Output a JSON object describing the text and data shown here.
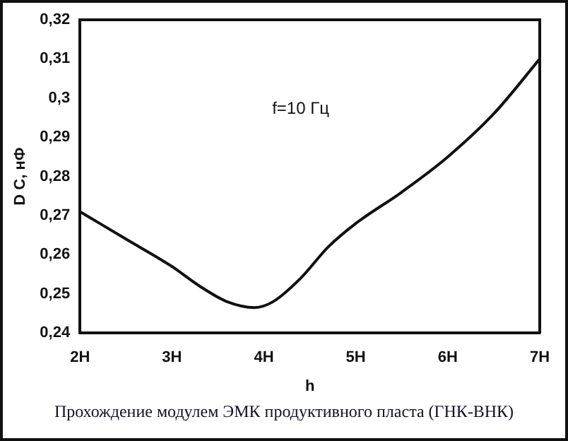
{
  "chart_data": {
    "type": "line",
    "xlabel": "h",
    "ylabel": "D C, нФ",
    "annotations": [
      "f=10 Гц",
      "Прохождение модулем ЭМК продуктивного пласта (ГНК-ВНК)"
    ],
    "series": [
      {
        "color": "#111111",
        "x": [
          2,
          2.5,
          3,
          3.3,
          3.6,
          3.9,
          4.1,
          4.4,
          4.7,
          5,
          5.5,
          6,
          6.5,
          7
        ],
        "values": [
          0.271,
          0.264,
          0.257,
          0.252,
          0.248,
          0.2465,
          0.248,
          0.254,
          0.262,
          0.268,
          0.276,
          0.285,
          0.296,
          0.31
        ]
      }
    ],
    "xlim": [
      2,
      7
    ],
    "xticks": [
      {
        "value": 2,
        "label": "2H"
      },
      {
        "value": 3,
        "label": "3H"
      },
      {
        "value": 4,
        "label": "4H"
      },
      {
        "value": 5,
        "label": "5H"
      },
      {
        "value": 6,
        "label": "6H"
      },
      {
        "value": 7,
        "label": "7H"
      }
    ],
    "ylim": [
      0.24,
      0.32
    ],
    "yticks": [
      {
        "value": 0.24,
        "label": "0,24"
      },
      {
        "value": 0.25,
        "label": "0,25"
      },
      {
        "value": 0.26,
        "label": "0,26"
      },
      {
        "value": 0.27,
        "label": "0,27"
      },
      {
        "value": 0.28,
        "label": "0,28"
      },
      {
        "value": 0.29,
        "label": "0,29"
      },
      {
        "value": 0.3,
        "label": "0,3"
      },
      {
        "value": 0.31,
        "label": "0,31"
      },
      {
        "value": 0.32,
        "label": "0,32"
      }
    ],
    "grid": false,
    "legend": false,
    "marker": "none",
    "line_style": "solid"
  }
}
